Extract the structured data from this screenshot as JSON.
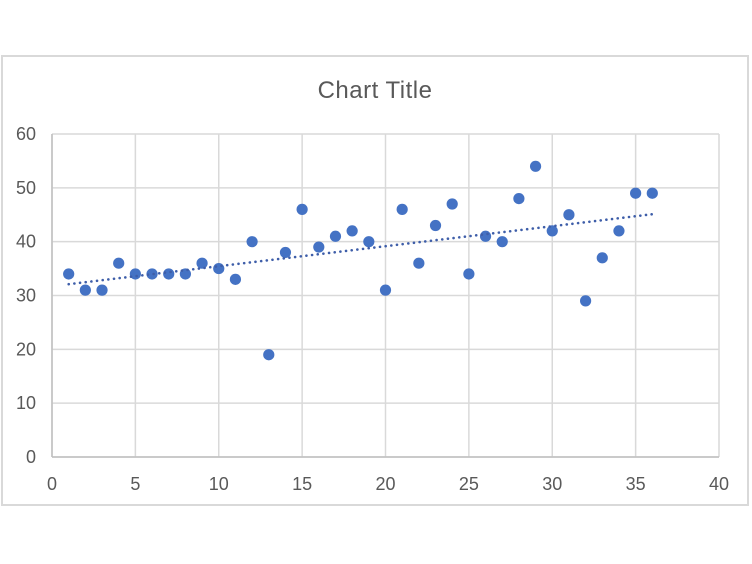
{
  "chart_data": {
    "type": "scatter",
    "title": "Chart Title",
    "points": [
      [
        1,
        34
      ],
      [
        2,
        31
      ],
      [
        3,
        31
      ],
      [
        4,
        36
      ],
      [
        5,
        34
      ],
      [
        6,
        34
      ],
      [
        7,
        34
      ],
      [
        8,
        34
      ],
      [
        9,
        36
      ],
      [
        10,
        35
      ],
      [
        11,
        33
      ],
      [
        12,
        40
      ],
      [
        13,
        19
      ],
      [
        14,
        38
      ],
      [
        15,
        46
      ],
      [
        16,
        39
      ],
      [
        17,
        41
      ],
      [
        18,
        42
      ],
      [
        19,
        40
      ],
      [
        20,
        31
      ],
      [
        21,
        46
      ],
      [
        22,
        36
      ],
      [
        23,
        43
      ],
      [
        24,
        47
      ],
      [
        25,
        34
      ],
      [
        26,
        41
      ],
      [
        27,
        40
      ],
      [
        28,
        48
      ],
      [
        29,
        54
      ],
      [
        30,
        42
      ],
      [
        31,
        45
      ],
      [
        32,
        29
      ],
      [
        33,
        37
      ],
      [
        34,
        42
      ],
      [
        35,
        49
      ],
      [
        36,
        49
      ]
    ],
    "trendline": {
      "style": "dotted",
      "x_start": 1,
      "y_start": 32.1,
      "x_end": 36,
      "y_end": 45.1,
      "color": "#3e5ea9"
    },
    "xlabel": "",
    "ylabel": "",
    "xlim": [
      0,
      40
    ],
    "ylim": [
      0,
      60
    ],
    "x_ticks": [
      0,
      5,
      10,
      15,
      20,
      25,
      30,
      35,
      40
    ],
    "y_ticks": [
      0,
      10,
      20,
      30,
      40,
      50,
      60
    ],
    "grid": true,
    "legend": false,
    "marker_color": "#4472c4",
    "gridline_color": "#d9d9d9",
    "axis_line_color": "#bfbfbf",
    "tick_label_color": "#595959",
    "title_color": "#595959"
  }
}
